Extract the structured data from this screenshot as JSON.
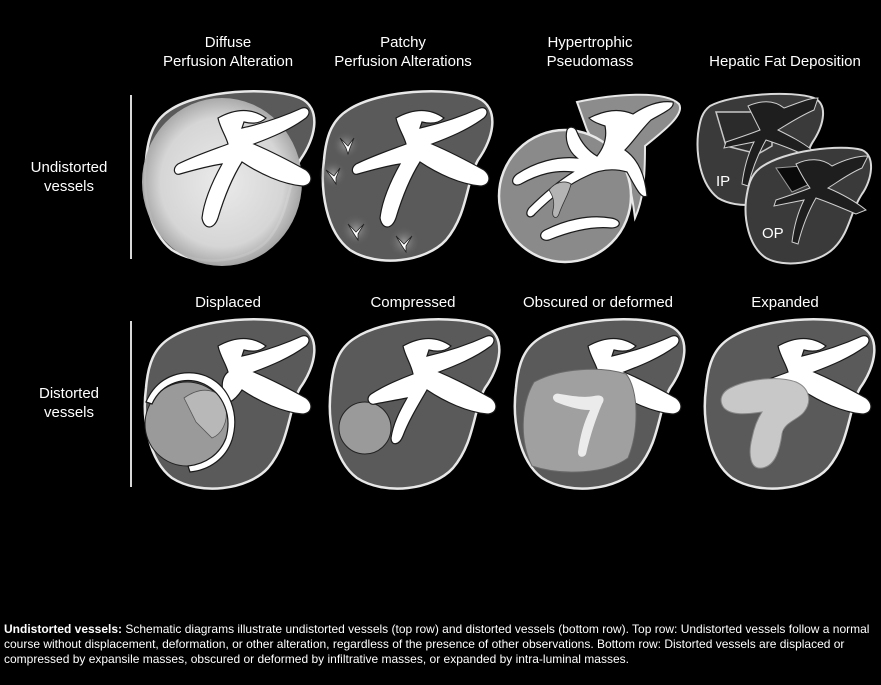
{
  "columns_top": [
    "Diffuse\nPerfusion Alteration",
    "Patchy\nPerfusion Alterations",
    "Hypertrophic\nPseudomass",
    "Hepatic Fat Deposition"
  ],
  "columns_bottom": [
    "Displaced",
    "Compressed",
    "Obscured or deformed",
    "Expanded"
  ],
  "rows": [
    "Undistorted\nvessels",
    "Distorted\nvessels"
  ],
  "fat_labels": {
    "ip": "IP",
    "op": "OP"
  },
  "caption": {
    "bold": "Undistorted vessels:",
    "text": " Schematic diagrams illustrate undistorted vessels (top row) and distorted vessels (bottom row). Top row: Undistorted vessels follow a normal course without displacement, deformation, or other alteration, regardless of the presence of other observations. Bottom row: Distorted vessels are displaced or compressed by expansile masses, obscured or deformed by infiltrative masses, or expanded by intra-luminal masses."
  }
}
